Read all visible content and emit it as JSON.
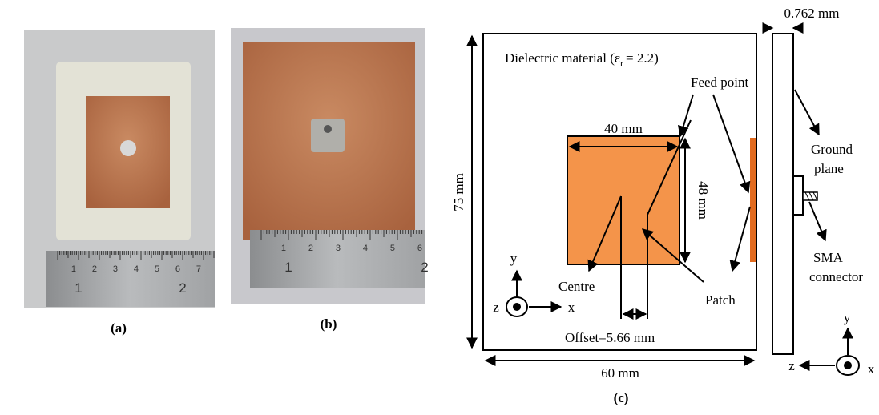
{
  "panel_a": {
    "label": "(a)",
    "ruler_small": [
      "1",
      "2",
      "3",
      "4",
      "5",
      "6",
      "7"
    ],
    "ruler_large": [
      "1",
      "2"
    ]
  },
  "panel_b": {
    "label": "(b)",
    "ruler_small": [
      "1",
      "2",
      "3",
      "4",
      "5",
      "6"
    ],
    "ruler_large": [
      "1",
      "2"
    ]
  },
  "panel_c": {
    "label": "(c)",
    "dielectric": [
      "Dielectric material (ε",
      "r",
      "= 2.2)"
    ],
    "feed_point": "Feed point",
    "width": "40 mm",
    "length": "48 mm",
    "board_height": "75 mm",
    "board_width": "60 mm",
    "thickness": "0.762 mm",
    "ground_plane": [
      "Ground",
      "plane"
    ],
    "centre": "Centre",
    "patch": "Patch",
    "offset": "Offset=5.66 mm",
    "sma": [
      "SMA",
      "connector"
    ],
    "axes_front": {
      "y": "y",
      "x": "x",
      "z": "z"
    },
    "axes_side": {
      "y": "y",
      "x": "x",
      "z": "z"
    }
  }
}
